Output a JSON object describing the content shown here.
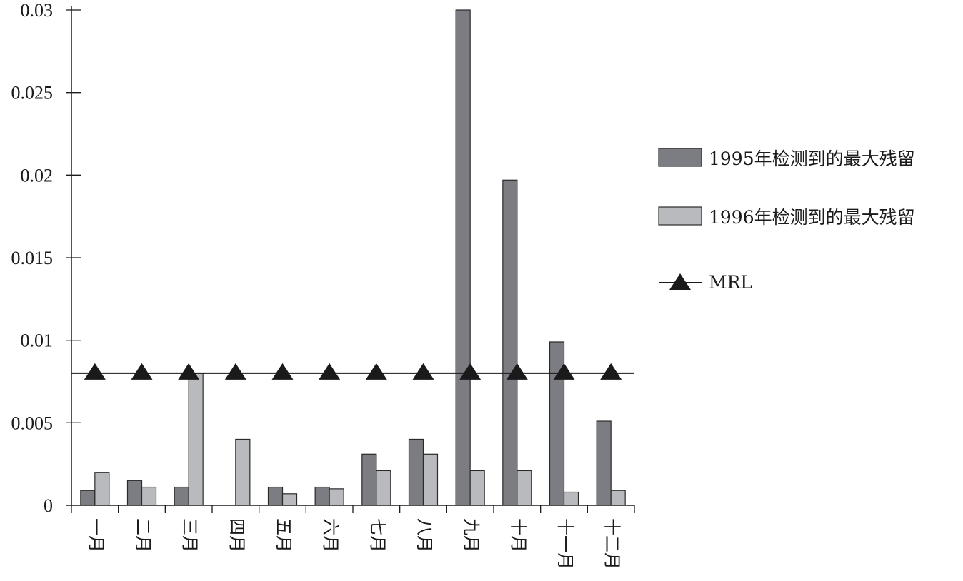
{
  "chart_data": {
    "type": "bar",
    "categories": [
      "一月",
      "二月",
      "三月",
      "四月",
      "五月",
      "六月",
      "七月",
      "八月",
      "九月",
      "十月",
      "十一月",
      "十二月"
    ],
    "series": [
      {
        "name": "1995年检测到的最大残留",
        "color": "#7b7d82",
        "values": [
          0.0009,
          0.0015,
          0.0011,
          0,
          0.0011,
          0.0011,
          0.0031,
          0.004,
          0.03,
          0.0197,
          0.0099,
          0.0051
        ]
      },
      {
        "name": "1996年检测到的最大残留",
        "color": "#b9babd",
        "values": [
          0.002,
          0.0011,
          0.008,
          0.004,
          0.0007,
          0.001,
          0.0021,
          0.0031,
          0.0021,
          0.0021,
          0.0008,
          0.0009
        ]
      }
    ],
    "mrl": {
      "name": "MRL",
      "value": 0.008,
      "color": "#1a1a1a"
    },
    "yticks": [
      "0",
      "0.005",
      "0.01",
      "0.015",
      "0.02",
      "0.025",
      "0.03"
    ],
    "ylim": [
      0,
      0.03
    ],
    "title": "",
    "xlabel": "",
    "ylabel": "",
    "legend_position": "right"
  }
}
